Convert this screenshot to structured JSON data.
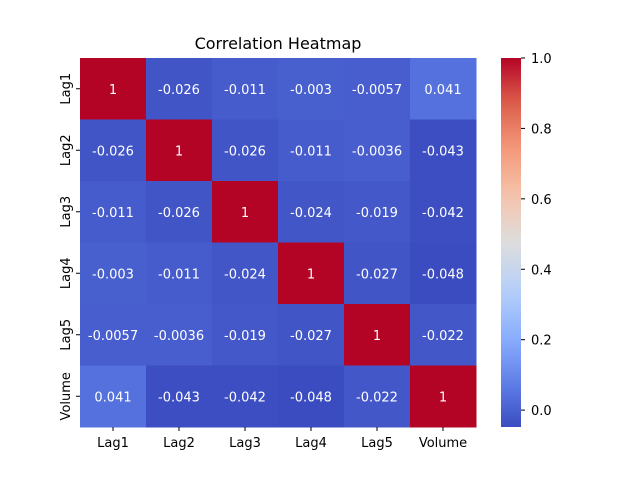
{
  "chart_data": {
    "type": "heatmap",
    "title": "Correlation Heatmap",
    "colormap": "coolwarm",
    "x_categories": [
      "Lag1",
      "Lag2",
      "Lag3",
      "Lag4",
      "Lag5",
      "Volume"
    ],
    "y_categories": [
      "Lag1",
      "Lag2",
      "Lag3",
      "Lag4",
      "Lag5",
      "Volume"
    ],
    "matrix": [
      [
        1,
        -0.026,
        -0.011,
        -0.003,
        -0.0057,
        0.041
      ],
      [
        -0.026,
        1,
        -0.026,
        -0.011,
        -0.0036,
        -0.043
      ],
      [
        -0.011,
        -0.026,
        1,
        -0.024,
        -0.019,
        -0.042
      ],
      [
        -0.003,
        -0.011,
        -0.024,
        1,
        -0.027,
        -0.048
      ],
      [
        -0.0057,
        -0.0036,
        -0.019,
        -0.027,
        1,
        -0.022
      ],
      [
        0.041,
        -0.043,
        -0.042,
        -0.048,
        -0.022,
        1
      ]
    ],
    "annotations": [
      [
        "1",
        "-0.026",
        "-0.011",
        "-0.003",
        "-0.0057",
        "0.041"
      ],
      [
        "-0.026",
        "1",
        "-0.026",
        "-0.011",
        "-0.0036",
        "-0.043"
      ],
      [
        "-0.011",
        "-0.026",
        "1",
        "-0.024",
        "-0.019",
        "-0.042"
      ],
      [
        "-0.003",
        "-0.011",
        "-0.024",
        "1",
        "-0.027",
        "-0.048"
      ],
      [
        "-0.0057",
        "-0.0036",
        "-0.019",
        "-0.027",
        "1",
        "-0.022"
      ],
      [
        "0.041",
        "-0.043",
        "-0.042",
        "-0.048",
        "-0.022",
        "1"
      ]
    ],
    "colorbar": {
      "range": [
        -0.048,
        1.0
      ],
      "ticks": [
        0.0,
        0.2,
        0.4,
        0.6,
        0.8,
        1.0
      ],
      "tick_labels": [
        "0.0",
        "0.2",
        "0.4",
        "0.6",
        "0.8",
        "1.0"
      ]
    }
  }
}
